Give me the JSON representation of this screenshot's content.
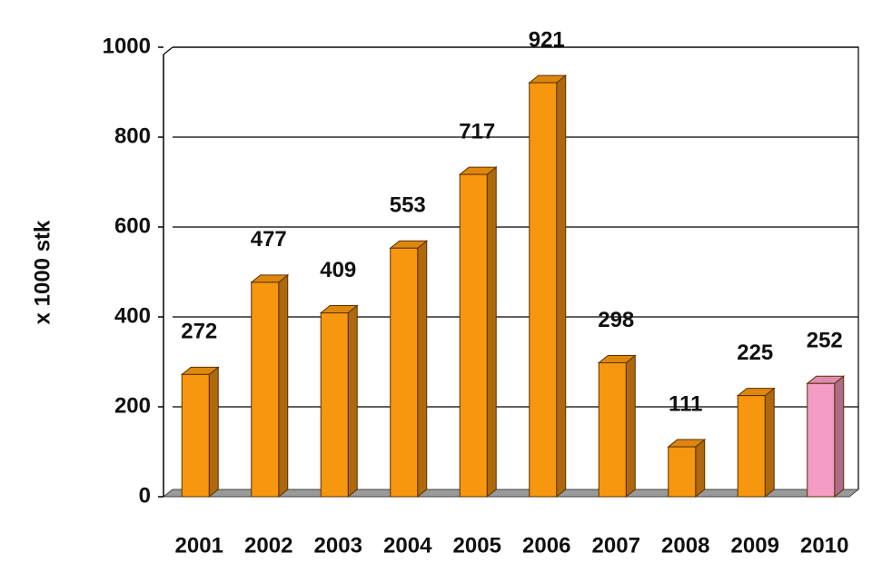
{
  "chart_data": {
    "type": "bar",
    "y_label": "x 1000 stk",
    "categories": [
      "2001",
      "2002",
      "2003",
      "2004",
      "2005",
      "2006",
      "2007",
      "2008",
      "2009",
      "2010"
    ],
    "values": [
      272,
      477,
      409,
      553,
      717,
      921,
      298,
      111,
      225,
      252
    ],
    "colors": [
      "#f7960f",
      "#f7960f",
      "#f7960f",
      "#f7960f",
      "#f7960f",
      "#f7960f",
      "#f7960f",
      "#f7960f",
      "#f7960f",
      "#f59cc4"
    ],
    "ylim": [
      0,
      1000
    ],
    "yticks": [
      0,
      200,
      400,
      600,
      800,
      1000
    ],
    "grid": true
  }
}
